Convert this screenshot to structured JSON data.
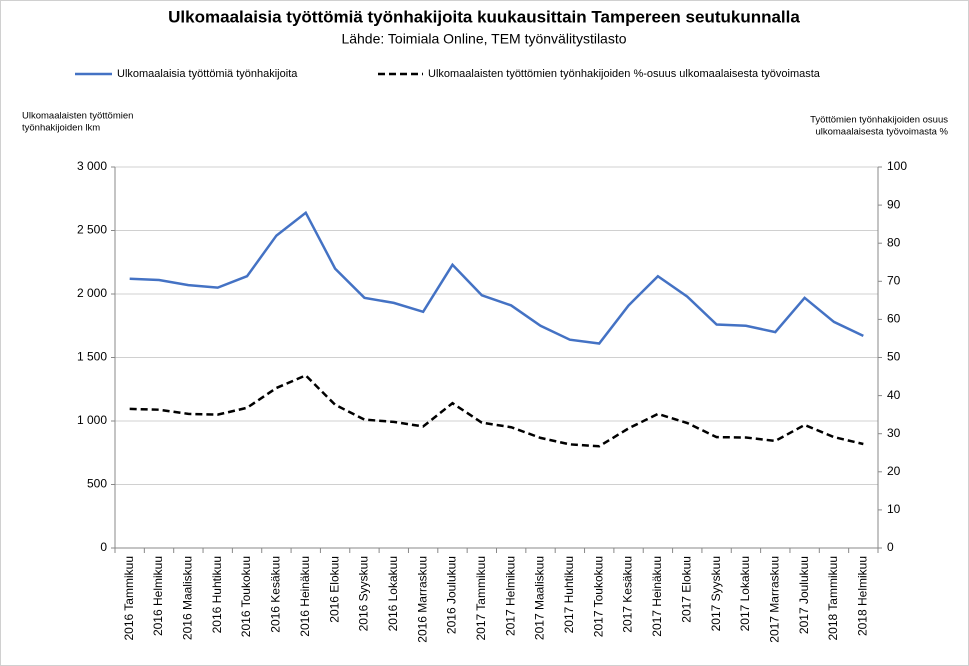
{
  "chart_data": {
    "type": "line",
    "title": "Ulkomaalaisia työttömiä työnhakijoita kuukausittain Tampereen seutukunnalla",
    "subtitle": "Lähde: Toimiala Online, TEM työnvälitystilasto",
    "ylabel": [
      "Ulkomaalaisten työttömien",
      "työnhakijoiden lkm"
    ],
    "y2label": [
      "Työttömien työnhakijoiden osuus",
      "ulkomaalaisesta työvoimasta %"
    ],
    "categories": [
      "2016 Tammikuu",
      "2016 Helmikuu",
      "2016 Maaliskuu",
      "2016 Huhtikuu",
      "2016 Toukokuu",
      "2016 Kesäkuu",
      "2016 Heinäkuu",
      "2016 Elokuu",
      "2016 Syyskuu",
      "2016 Lokakuu",
      "2016 Marraskuu",
      "2016 Joulukuu",
      "2017 Tammikuu",
      "2017 Helmikuu",
      "2017 Maaliskuu",
      "2017 Huhtikuu",
      "2017 Toukokuu",
      "2017 Kesäkuu",
      "2017 Heinäkuu",
      "2017 Elokuu",
      "2017 Syyskuu",
      "2017 Lokakuu",
      "2017 Marraskuu",
      "2017 Joulukuu",
      "2018 Tammikuu",
      "2018 Helmikuu"
    ],
    "series": [
      {
        "name": "Ulkomaalaisia työttömiä työnhakijoita",
        "color": "#4472c4",
        "style": "solid",
        "values": [
          2120,
          2110,
          2070,
          2050,
          2140,
          2460,
          2640,
          2200,
          1970,
          1930,
          1860,
          2230,
          1990,
          1910,
          1750,
          1640,
          1610,
          1910,
          2140,
          1980,
          1760,
          1750,
          1700,
          1970,
          1780,
          1670
        ]
      },
      {
        "name": "Ulkomaalaisten työttömien työnhakijoiden %-osuus ulkomaalaisesta työvoimasta",
        "color": "#000000",
        "style": "dashed",
        "axis": "y2",
        "values": [
          36.5,
          36.3,
          35.2,
          35.0,
          36.8,
          42.0,
          45.3,
          37.6,
          33.7,
          33.1,
          31.9,
          38.0,
          32.9,
          31.7,
          28.9,
          27.2,
          26.7,
          31.4,
          35.2,
          32.8,
          29.1,
          29.0,
          28.1,
          32.3,
          29.1,
          27.3
        ]
      }
    ],
    "ylim": [
      0,
      3000
    ],
    "yticks": [
      0,
      500,
      {
        "value": 1000,
        "label": "1 000"
      },
      {
        "value": 1500,
        "label": "1 500"
      },
      {
        "value": 2000,
        "label": "2 000"
      },
      {
        "value": 2500,
        "label": "2 500"
      },
      {
        "value": 3000,
        "label": "3 000"
      }
    ],
    "y2lim": [
      0,
      100
    ],
    "y2ticks": [
      0,
      10,
      20,
      30,
      40,
      50,
      60,
      70,
      80,
      90,
      100
    ],
    "grid": true,
    "legend": "top"
  }
}
